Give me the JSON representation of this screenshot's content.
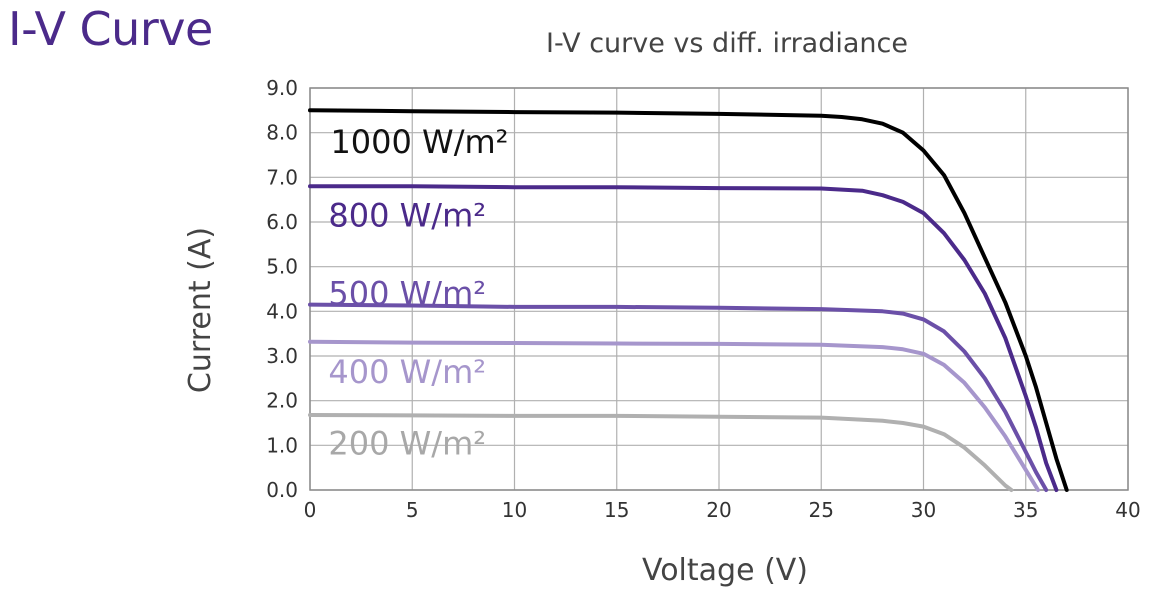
{
  "page": {
    "heading": "I-V Curve"
  },
  "chart_data": {
    "type": "line",
    "title": "I-V curve vs diff. irradiance",
    "xlabel": "Voltage (V)",
    "ylabel": "Current (A)",
    "xlim": [
      0,
      40
    ],
    "ylim": [
      0,
      9
    ],
    "xticks": [
      "0",
      "5",
      "10",
      "15",
      "20",
      "25",
      "30",
      "35",
      "40"
    ],
    "yticks": [
      "0.0",
      "1.0",
      "2.0",
      "3.0",
      "4.0",
      "5.0",
      "6.0",
      "7.0",
      "8.0",
      "9.0"
    ],
    "grid": true,
    "series": [
      {
        "name": "1000 W/m²",
        "color": "#000000",
        "label_color": "#111111",
        "x": [
          0,
          5,
          10,
          15,
          20,
          25,
          26,
          27,
          28,
          29,
          30,
          31,
          32,
          33,
          34,
          35,
          35.5,
          36,
          36.5,
          37
        ],
        "y": [
          8.5,
          8.48,
          8.46,
          8.45,
          8.42,
          8.38,
          8.35,
          8.3,
          8.2,
          8.0,
          7.6,
          7.05,
          6.2,
          5.2,
          4.2,
          3.0,
          2.3,
          1.5,
          0.7,
          0.0
        ]
      },
      {
        "name": "800 W/m²",
        "color": "#4b2a8a",
        "label_color": "#4b2a8a",
        "x": [
          0,
          5,
          10,
          15,
          20,
          25,
          27,
          28,
          29,
          30,
          31,
          32,
          33,
          34,
          35,
          35.5,
          36,
          36.5
        ],
        "y": [
          6.8,
          6.8,
          6.78,
          6.78,
          6.76,
          6.75,
          6.7,
          6.6,
          6.45,
          6.2,
          5.75,
          5.15,
          4.4,
          3.4,
          2.1,
          1.4,
          0.6,
          0.0
        ]
      },
      {
        "name": "500 W/m²",
        "color": "#6b50a8",
        "label_color": "#6b50a8",
        "x": [
          0,
          5,
          10,
          15,
          20,
          25,
          28,
          29,
          30,
          31,
          32,
          33,
          34,
          35,
          35.5,
          36
        ],
        "y": [
          4.15,
          4.13,
          4.1,
          4.1,
          4.08,
          4.05,
          4.0,
          3.95,
          3.82,
          3.55,
          3.1,
          2.5,
          1.75,
          0.85,
          0.4,
          0.0
        ]
      },
      {
        "name": "400 W/m²",
        "color": "#a696cc",
        "label_color": "#a696cc",
        "x": [
          0,
          5,
          10,
          15,
          20,
          25,
          28,
          29,
          30,
          31,
          32,
          33,
          34,
          35,
          35.6
        ],
        "y": [
          3.32,
          3.3,
          3.29,
          3.28,
          3.27,
          3.25,
          3.2,
          3.15,
          3.05,
          2.8,
          2.4,
          1.85,
          1.2,
          0.45,
          0.0
        ]
      },
      {
        "name": "200 W/m²",
        "color": "#b0b0b0",
        "label_color": "#a8a8a8",
        "x": [
          0,
          5,
          10,
          15,
          20,
          25,
          28,
          29,
          30,
          31,
          32,
          33,
          34,
          34.3
        ],
        "y": [
          1.68,
          1.67,
          1.66,
          1.66,
          1.64,
          1.62,
          1.55,
          1.5,
          1.42,
          1.25,
          0.95,
          0.55,
          0.1,
          0.0
        ]
      }
    ]
  }
}
